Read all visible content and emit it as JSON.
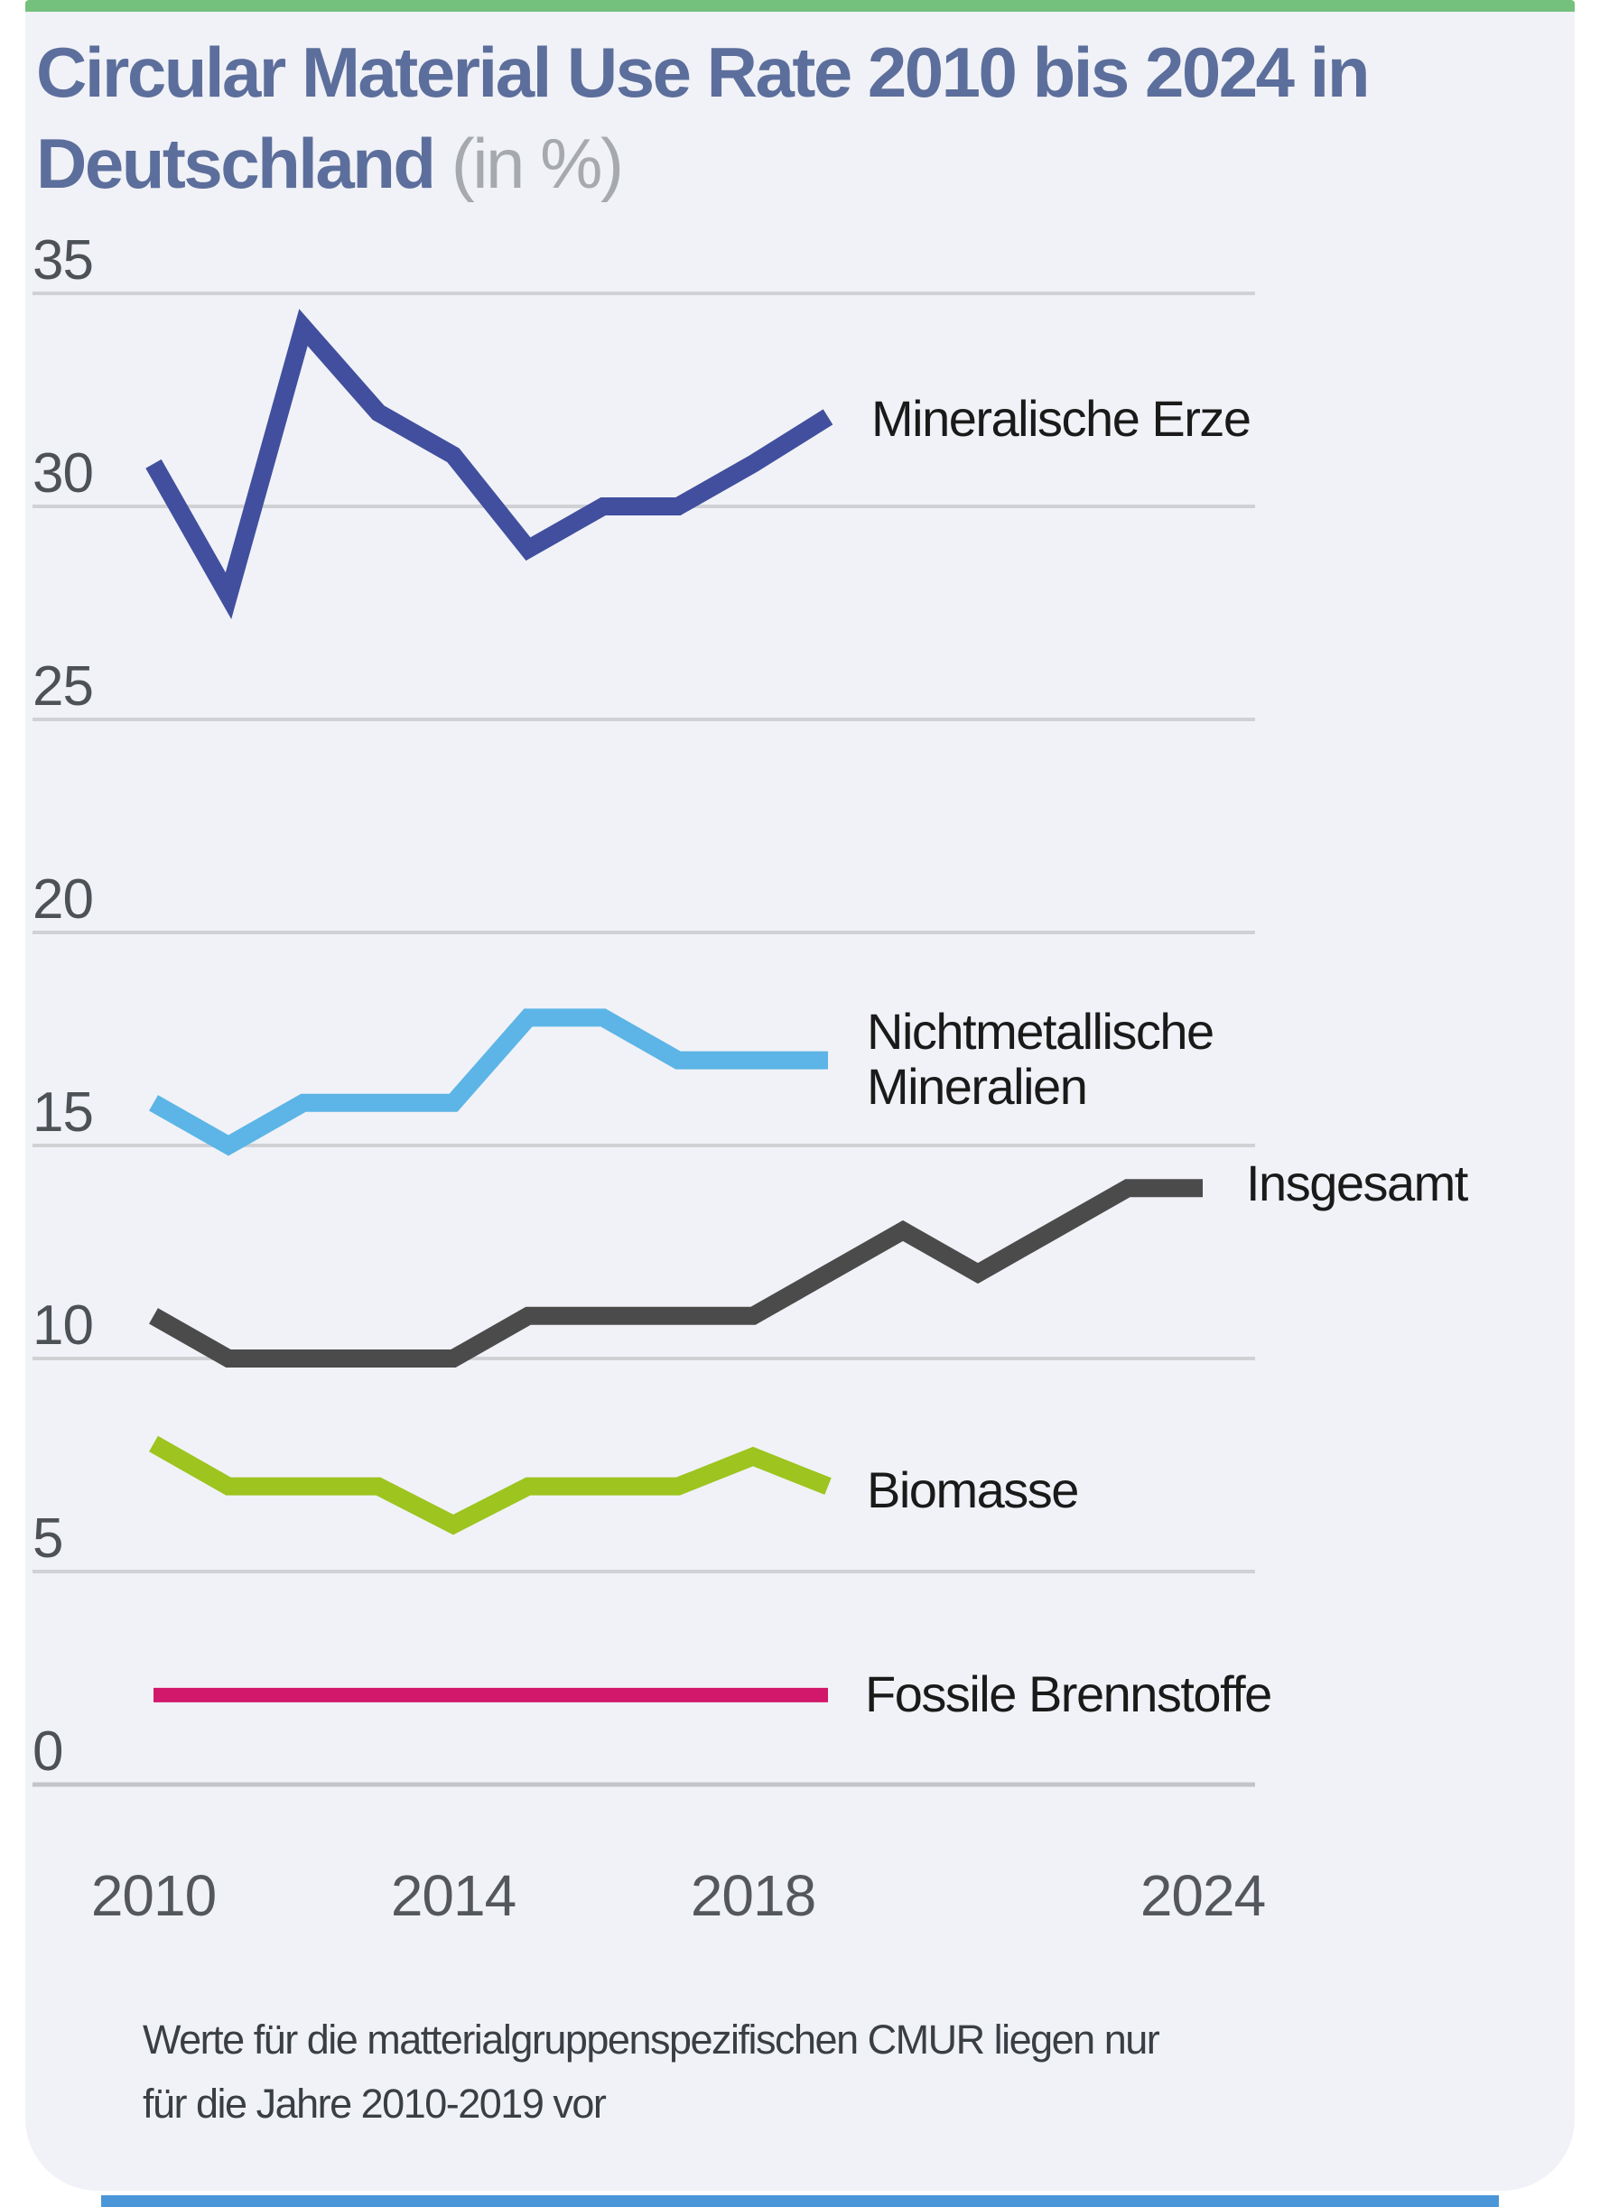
{
  "page": {
    "top_bar_color": "#74c17e",
    "bottom_bar_color": "#4a96d9",
    "card_background": "#f1f2f7"
  },
  "header": {
    "title_line1": "Circular Material Use Rate 2010 bis 2024 in",
    "title_line2": "Deutschland",
    "title_suffix": "(in %)",
    "title_color": "#5c6e9b"
  },
  "chart_data": {
    "type": "line",
    "title": "Circular Material Use Rate 2010 bis 2024 in Deutschland (in %)",
    "xlabel": "",
    "ylabel": "",
    "ylim": [
      0,
      37
    ],
    "y_ticks": [
      0,
      5,
      10,
      15,
      20,
      25,
      30,
      35
    ],
    "x_ticks": [
      2010,
      2014,
      2018,
      2024
    ],
    "grid": "horizontal",
    "legend_position": "right-of-line-end",
    "series": [
      {
        "name": "Mineralische Erze",
        "color": "#414f9e",
        "years": [
          2010,
          2011,
          2012,
          2013,
          2014,
          2015,
          2016,
          2017,
          2018,
          2019
        ],
        "values": [
          31.0,
          27.9,
          34.2,
          32.2,
          31.2,
          29.0,
          30.0,
          30.0,
          31.0,
          32.1
        ]
      },
      {
        "name": "Nichtmetallische Mineralien",
        "color": "#5cb5e6",
        "years": [
          2010,
          2011,
          2012,
          2013,
          2014,
          2015,
          2016,
          2017,
          2018,
          2019
        ],
        "values": [
          16.0,
          15.0,
          16.0,
          16.0,
          16.0,
          18.0,
          18.0,
          17.0,
          17.0,
          17.0
        ]
      },
      {
        "name": "Insgesamt",
        "color": "#4b4b4b",
        "years": [
          2010,
          2011,
          2012,
          2013,
          2014,
          2015,
          2016,
          2017,
          2018,
          2019,
          2020,
          2021,
          2022,
          2023,
          2024
        ],
        "values": [
          11.0,
          10.0,
          10.0,
          10.0,
          10.0,
          11.0,
          11.0,
          11.0,
          11.0,
          12.0,
          13.0,
          12.0,
          13.0,
          14.0,
          14.0
        ]
      },
      {
        "name": "Biomasse",
        "color": "#9dc41f",
        "years": [
          2010,
          2011,
          2012,
          2013,
          2014,
          2015,
          2016,
          2017,
          2018,
          2019
        ],
        "values": [
          8.0,
          7.0,
          7.0,
          7.0,
          6.1,
          7.0,
          7.0,
          7.0,
          7.7,
          7.0
        ]
      },
      {
        "name": "Fossile Brennstoffe",
        "color": "#d2186b",
        "years": [
          2010,
          2011,
          2012,
          2013,
          2014,
          2015,
          2016,
          2017,
          2018,
          2019
        ],
        "values": [
          2.1,
          2.1,
          2.1,
          2.1,
          2.1,
          2.1,
          2.1,
          2.1,
          2.1,
          2.1
        ]
      }
    ],
    "note": "Werte für die matterialgruppenspezifischen CMUR liegen nur für die Jahre 2010-2019 vor"
  },
  "footnote": {
    "line1": "Werte für die matterialgruppenspezifischen CMUR liegen nur",
    "line2": "für die Jahre 2010-2019 vor"
  }
}
